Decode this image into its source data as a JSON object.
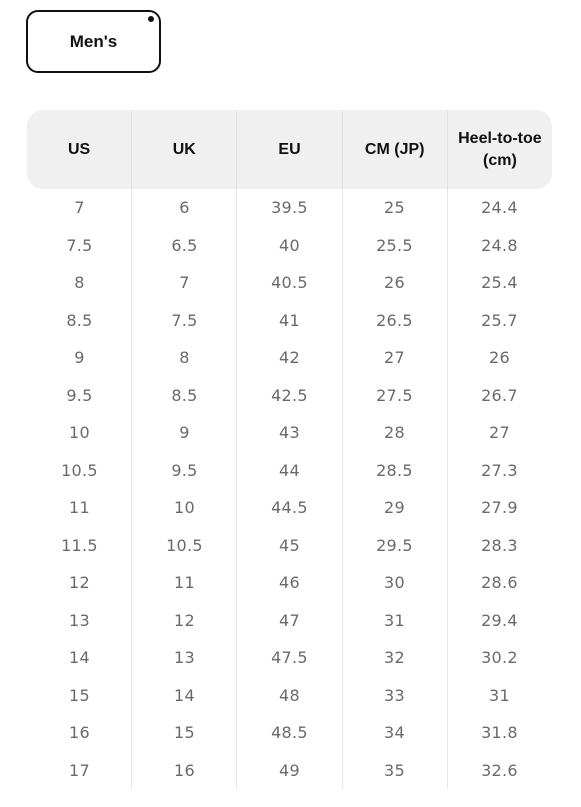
{
  "tabs": {
    "mens_label": "Men's"
  },
  "table": {
    "columns": [
      "US",
      "UK",
      "EU",
      "CM (JP)",
      "Heel-to-toe\n(cm)"
    ],
    "rows": [
      [
        "7",
        "6",
        "39.5",
        "25",
        "24.4"
      ],
      [
        "7.5",
        "6.5",
        "40",
        "25.5",
        "24.8"
      ],
      [
        "8",
        "7",
        "40.5",
        "26",
        "25.4"
      ],
      [
        "8.5",
        "7.5",
        "41",
        "26.5",
        "25.7"
      ],
      [
        "9",
        "8",
        "42",
        "27",
        "26"
      ],
      [
        "9.5",
        "8.5",
        "42.5",
        "27.5",
        "26.7"
      ],
      [
        "10",
        "9",
        "43",
        "28",
        "27"
      ],
      [
        "10.5",
        "9.5",
        "44",
        "28.5",
        "27.3"
      ],
      [
        "11",
        "10",
        "44.5",
        "29",
        "27.9"
      ],
      [
        "11.5",
        "10.5",
        "45",
        "29.5",
        "28.3"
      ],
      [
        "12",
        "11",
        "46",
        "30",
        "28.6"
      ],
      [
        "13",
        "12",
        "47",
        "31",
        "29.4"
      ],
      [
        "14",
        "13",
        "47.5",
        "32",
        "30.2"
      ],
      [
        "15",
        "14",
        "48",
        "33",
        "31"
      ],
      [
        "16",
        "15",
        "48.5",
        "34",
        "31.8"
      ],
      [
        "17",
        "16",
        "49",
        "35",
        "32.6"
      ]
    ]
  }
}
